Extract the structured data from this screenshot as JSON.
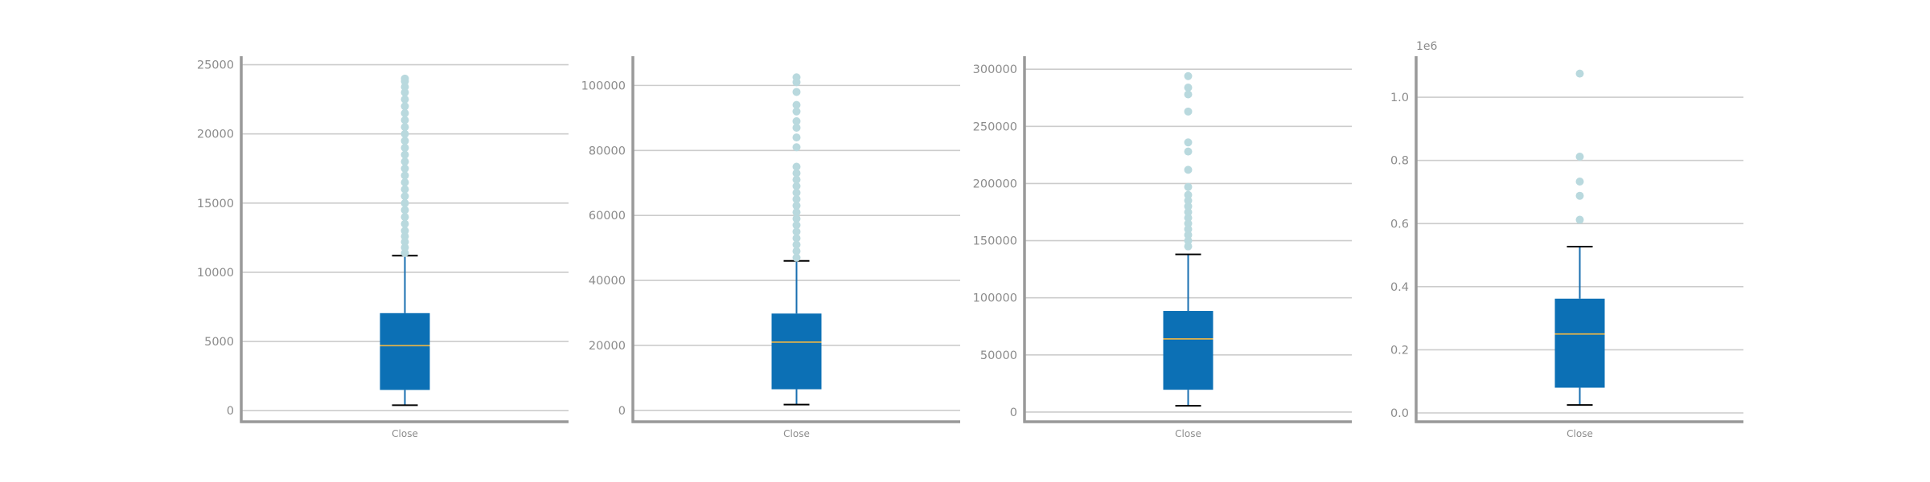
{
  "colors": {
    "background": "#ffffff",
    "axis_spine": "#999999",
    "grid": "#cccccc",
    "tick_label": "#8c8c8c",
    "box_fill": "#0c70b5",
    "whisker": "#1a6fb0",
    "cap": "#000000",
    "median": "#e2b34b",
    "flier": "#b9d9de"
  },
  "chart_data": [
    {
      "type": "box",
      "categories": [
        "Close"
      ],
      "ylim": [
        -800,
        25500
      ],
      "yticks": [
        0,
        5000,
        10000,
        15000,
        20000,
        25000
      ],
      "ytick_labels": [
        "0",
        "5000",
        "10000",
        "15000",
        "20000",
        "25000"
      ],
      "offset_text": "",
      "grid": "y",
      "box": {
        "whisker_low": 400,
        "q1": 1500,
        "median": 4700,
        "q3": 7050,
        "whisker_high": 11200
      },
      "fliers": [
        11400,
        11800,
        12200,
        12600,
        13000,
        13500,
        14000,
        14500,
        15000,
        15500,
        16000,
        16500,
        17000,
        17500,
        18000,
        18500,
        19000,
        19500,
        20000,
        20500,
        21000,
        21500,
        22000,
        22500,
        23000,
        23400,
        23800,
        24000
      ]
    },
    {
      "type": "box",
      "categories": [
        "Close"
      ],
      "ylim": [
        -3500,
        108500
      ],
      "yticks": [
        0,
        20000,
        40000,
        60000,
        80000,
        100000
      ],
      "ytick_labels": [
        "0",
        "20000",
        "40000",
        "60000",
        "80000",
        "100000"
      ],
      "offset_text": "",
      "grid": "y",
      "box": {
        "whisker_low": 1800,
        "q1": 6500,
        "median": 21000,
        "q3": 29800,
        "whisker_high": 46000
      },
      "fliers": [
        47000,
        49000,
        51000,
        53000,
        55000,
        57000,
        59000,
        61000,
        63000,
        65000,
        67000,
        69000,
        71000,
        73000,
        75000,
        81000,
        84000,
        87000,
        89000,
        92000,
        94000,
        98000,
        101000,
        102500
      ]
    },
    {
      "type": "box",
      "categories": [
        "Close"
      ],
      "ylim": [
        -8500,
        310000
      ],
      "yticks": [
        0,
        50000,
        100000,
        150000,
        200000,
        250000,
        300000
      ],
      "ytick_labels": [
        "0",
        "50000",
        "100000",
        "150000",
        "200000",
        "250000",
        "300000"
      ],
      "offset_text": "",
      "grid": "y",
      "box": {
        "whisker_low": 5500,
        "q1": 19500,
        "median": 64000,
        "q3": 88500,
        "whisker_high": 138000
      },
      "fliers": [
        145000,
        150000,
        155000,
        160000,
        165000,
        170000,
        175000,
        180000,
        185000,
        190000,
        197000,
        212000,
        228000,
        236000,
        263000,
        278000,
        284000,
        294000
      ]
    },
    {
      "type": "box",
      "categories": [
        "Close"
      ],
      "ylim": [
        -0.028,
        1.125
      ],
      "yticks": [
        0.0,
        0.2,
        0.4,
        0.6,
        0.8,
        1.0
      ],
      "ytick_labels": [
        "0.0",
        "0.2",
        "0.4",
        "0.6",
        "0.8",
        "1.0"
      ],
      "offset_text": "1e6",
      "grid": "y",
      "box": {
        "whisker_low": 0.025,
        "q1": 0.08,
        "median": 0.25,
        "q3": 0.362,
        "whisker_high": 0.527
      },
      "fliers": [
        0.612,
        0.688,
        0.733,
        0.812,
        1.075
      ]
    }
  ]
}
